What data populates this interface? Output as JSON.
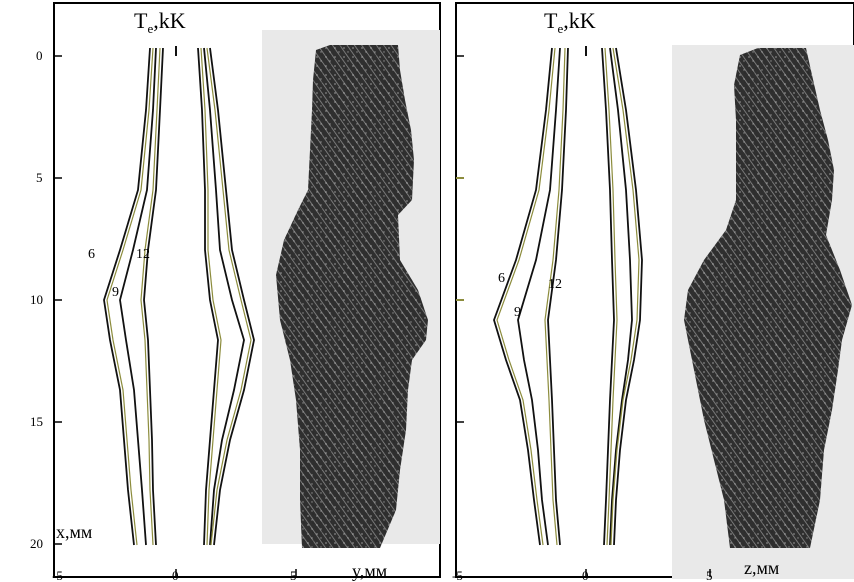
{
  "left_panel": {
    "title_main": "T",
    "title_sub": "e",
    "title_rest": ",kK",
    "vertical_axis_label": "x,мм",
    "horizontal_axis_label": "y,мм",
    "y_tick_labels": [
      "0",
      "5",
      "10",
      "15",
      "20"
    ],
    "x_tick_labels": [
      "-5",
      "0",
      "5"
    ],
    "contour_labels": [
      "6",
      "9",
      "12"
    ]
  },
  "right_panel": {
    "title_main": "T",
    "title_sub": "e",
    "title_rest": ",kK",
    "horizontal_axis_label": "z,мм",
    "x_tick_labels": [
      "-5",
      "0",
      "5"
    ],
    "contour_labels": [
      "6",
      "9",
      "12"
    ]
  },
  "colors": {
    "frame": "#000000",
    "contour_dark": "#111111",
    "contour_olive": "#8c8c3c",
    "photo_background": "#ececec",
    "photo_column": "#3a3a3a"
  }
}
